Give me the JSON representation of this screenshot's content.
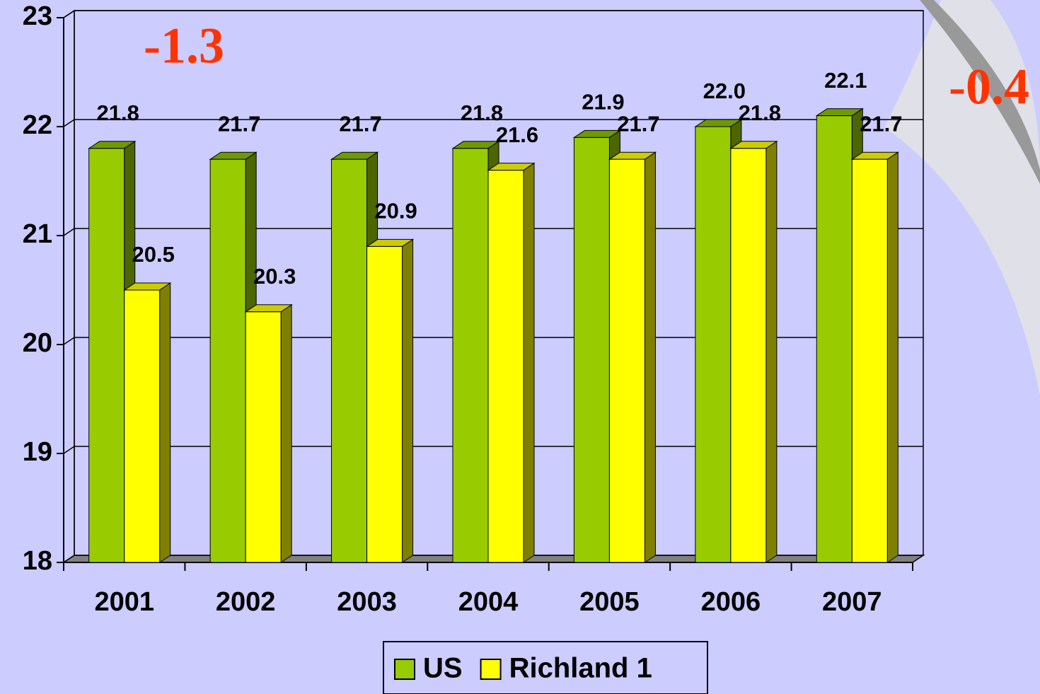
{
  "chart_data": {
    "type": "bar3d",
    "categories": [
      "2001",
      "2002",
      "2003",
      "2004",
      "2005",
      "2006",
      "2007"
    ],
    "series": [
      {
        "name": "US",
        "color": "#99cc00",
        "values": [
          21.8,
          21.7,
          21.7,
          21.8,
          21.9,
          22.0,
          22.1
        ],
        "value_labels": [
          "21.8",
          "21.7",
          "21.7",
          "21.8",
          "21.9",
          "22.0",
          "22.1"
        ]
      },
      {
        "name": "Richland 1",
        "color": "#ffff00",
        "values": [
          20.5,
          20.3,
          20.9,
          21.6,
          21.7,
          21.8,
          21.7
        ],
        "value_labels": [
          "20.5",
          "20.3",
          "20.9",
          "21.6",
          "21.7",
          "21.8",
          "21.7"
        ]
      }
    ],
    "ylim": [
      18,
      23
    ],
    "yticks": [
      18,
      19,
      20,
      21,
      22,
      23
    ],
    "grid": true,
    "annotations": [
      "-1.3",
      "-0.4"
    ]
  }
}
